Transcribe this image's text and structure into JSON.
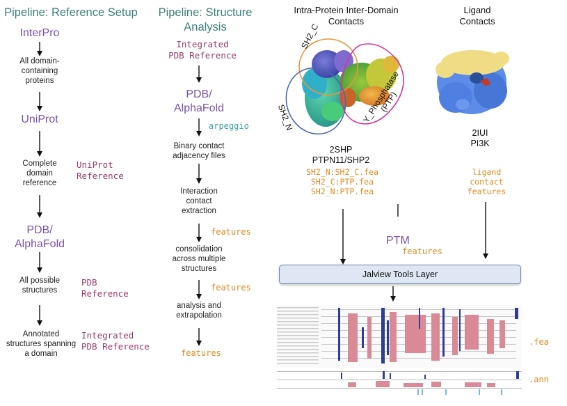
{
  "left_pipeline": {
    "title": "Pipeline: Reference Setup",
    "stages": [
      "InterPro",
      "All domain-\ncontaining\nproteins",
      "UniProt",
      "Complete\ndomain\nreference",
      "PDB/\nAlphaFold",
      "All possible\nstructures",
      "Annotated\nstructures spanning\na domain"
    ],
    "side_labels": [
      "UniProt\nReference",
      "PDB\nReference",
      "Integrated\nPDB Reference"
    ]
  },
  "middle_pipeline": {
    "title": "Pipeline: Structure\nAnalysis",
    "start_ref": "Integrated\nPDB Reference",
    "stages": [
      "PDB/\nAlphaFold",
      "Binary contact\nadjacency files",
      "Interaction\ncontact\nextraction",
      "consolidation\nacross multiple\nstructures",
      "analysis and\nextrapolation",
      "features"
    ],
    "side_labels": [
      "arpeggio",
      "features",
      "features"
    ]
  },
  "right_panel": {
    "domain_contacts_title": "Intra-Protein Inter-Domain\nContacts",
    "ligand_contacts_title": "Ligand\nContacts",
    "domain_labels": [
      "SH2_C",
      "SH2_N",
      "Y_Phosphatase\n(PTP)"
    ],
    "protein_1": "2SHP\nPTPN11/SHP2",
    "protein_2": "2IUI\nPI3K",
    "feature_files": "SH2_N:SH2_C.fea\nSH2_C:PTP.fea\nSH2_N:PTP.fea",
    "ligand_features": "ligand\ncontact\nfeatures",
    "ptm_label": "PTM",
    "ptm_features": "features",
    "layer_label": "Jalview Tools Layer",
    "output_fea": ".fea",
    "output_ann": ".ann"
  },
  "colors": {
    "header_teal": "#3c7f78",
    "stage_purple": "#7a52a6",
    "reference_magenta": "#9a3a6a",
    "features_orange": "#e0891e",
    "arpeggio_teal": "#3a9ea0",
    "layer_fill": "#dfe6f4"
  }
}
